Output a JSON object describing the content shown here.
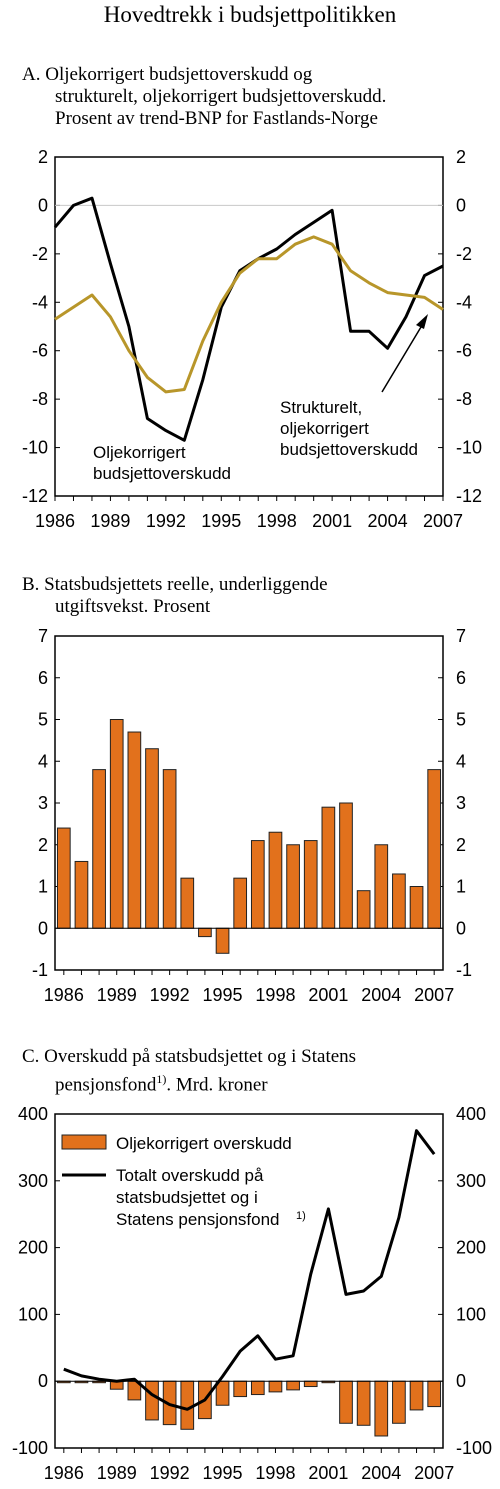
{
  "page_title": "Hovedtrekk i budsjettpolitikken",
  "colors": {
    "black_line": "#000000",
    "gold_line": "#b8962a",
    "bar_fill": "#e2711c",
    "bar_edge": "#222222",
    "axis": "#000000",
    "zero_line": "#c8c8c8"
  },
  "panels": [
    {
      "title_lines": [
        "A. Oljekorrigert budsjettoverskudd og",
        "strukturelt, oljekorrigert budsjettoverskudd.",
        "Prosent av trend-BNP for Fastlands-Norge"
      ]
    },
    {
      "title_lines": [
        "B.  Statsbudsjettets reelle, underliggende",
        "utgiftsvekst. Prosent"
      ]
    },
    {
      "title_lines": [
        "C.  Overskudd på statsbudsjettet og i Statens",
        "pensjonsfond",
        "1)",
        ". Mrd. kroner"
      ]
    }
  ],
  "chart_data": [
    {
      "type": "line",
      "x": [
        1986,
        1987,
        1988,
        1989,
        1990,
        1991,
        1992,
        1993,
        1994,
        1995,
        1996,
        1997,
        1998,
        1999,
        2000,
        2001,
        2002,
        2003,
        2004,
        2005,
        2006,
        2007
      ],
      "x_tick_labels": [
        "1986",
        "1989",
        "1992",
        "1995",
        "1998",
        "2001",
        "2004",
        "2007"
      ],
      "xlim": [
        1986,
        2007
      ],
      "ylim": [
        -12,
        2
      ],
      "y_ticks": [
        2,
        0,
        -2,
        -4,
        -6,
        -8,
        -10,
        -12
      ],
      "y_tick_labels": [
        "2",
        "0",
        "-2",
        "-4",
        "-6",
        "-8",
        "-10",
        "-12"
      ],
      "series": [
        {
          "name": "Oljekorrigert budsjettoverskudd",
          "label_lines": [
            "Oljekorrigert",
            "budsjettoverskudd"
          ],
          "color": "#000000",
          "values": [
            -0.9,
            0.0,
            0.3,
            -2.4,
            -5.0,
            -8.8,
            -9.3,
            -9.7,
            -7.2,
            -4.2,
            -2.7,
            -2.2,
            -1.8,
            -1.2,
            -0.7,
            -0.2,
            -5.2,
            -5.2,
            -5.9,
            -4.6,
            -2.9,
            -2.5
          ]
        },
        {
          "name": "Strukturelt, oljekorrigert budsjettoverskudd",
          "label_lines": [
            "Strukturelt,",
            "oljekorrigert",
            "budsjettoverskudd"
          ],
          "color": "#b8962a",
          "values": [
            -4.7,
            -4.2,
            -3.7,
            -4.6,
            -6.0,
            -7.1,
            -7.7,
            -7.6,
            -5.6,
            -4.0,
            -2.8,
            -2.2,
            -2.2,
            -1.6,
            -1.3,
            -1.6,
            -2.7,
            -3.2,
            -3.6,
            -3.7,
            -3.8,
            -4.3
          ]
        }
      ]
    },
    {
      "type": "bar",
      "categories": [
        "1986",
        "1987",
        "1988",
        "1989",
        "1990",
        "1991",
        "1992",
        "1993",
        "1994",
        "1995",
        "1996",
        "1997",
        "1998",
        "1999",
        "2000",
        "2001",
        "2002",
        "2003",
        "2004",
        "2005",
        "2006",
        "2007"
      ],
      "x_tick_labels": [
        "1986",
        "1989",
        "1992",
        "1995",
        "1998",
        "2001",
        "2004",
        "2007"
      ],
      "values": [
        2.4,
        1.6,
        3.8,
        5.0,
        4.7,
        4.3,
        3.8,
        1.2,
        -0.2,
        -0.6,
        1.2,
        2.1,
        2.3,
        2.0,
        2.1,
        2.9,
        3.0,
        0.9,
        2.0,
        1.3,
        1.0,
        3.8
      ],
      "ylim": [
        -1,
        7
      ],
      "y_ticks": [
        7,
        6,
        5,
        4,
        3,
        2,
        1,
        0,
        -1
      ],
      "y_tick_labels": [
        "7",
        "6",
        "5",
        "4",
        "3",
        "2",
        "1",
        "0",
        "-1"
      ]
    },
    {
      "type": "bar+line",
      "categories": [
        "1986",
        "1987",
        "1988",
        "1989",
        "1990",
        "1991",
        "1992",
        "1993",
        "1994",
        "1995",
        "1996",
        "1997",
        "1998",
        "1999",
        "2000",
        "2001",
        "2002",
        "2003",
        "2004",
        "2005",
        "2006",
        "2007"
      ],
      "x_tick_labels": [
        "1986",
        "1989",
        "1992",
        "1995",
        "1998",
        "2001",
        "2004",
        "2007"
      ],
      "ylim": [
        -100,
        400
      ],
      "y_ticks": [
        400,
        300,
        200,
        100,
        0,
        -100
      ],
      "y_tick_labels": [
        "400",
        "300",
        "200",
        "100",
        "0",
        "-100"
      ],
      "legend": "top-left",
      "series": [
        {
          "name": "Oljekorrigert overskudd",
          "type": "bar",
          "color": "#e2711c",
          "values": [
            -1,
            -1,
            -1,
            -12,
            -28,
            -58,
            -65,
            -72,
            -56,
            -36,
            -23,
            -20,
            -16,
            -13,
            -8,
            -1,
            -63,
            -66,
            -82,
            -63,
            -43,
            -38
          ]
        },
        {
          "name": "Totalt overskudd på statsbudsjettet og i Statens pensjonsfond",
          "legend_lines": [
            "Totalt overskudd på",
            "statsbudsjettet og i",
            "Statens pensjonsfond",
            "1)"
          ],
          "type": "line",
          "color": "#000000",
          "values": [
            18,
            8,
            3,
            0,
            3,
            -20,
            -35,
            -42,
            -28,
            7,
            45,
            68,
            33,
            38,
            160,
            258,
            130,
            135,
            157,
            245,
            375,
            340
          ]
        }
      ]
    }
  ]
}
